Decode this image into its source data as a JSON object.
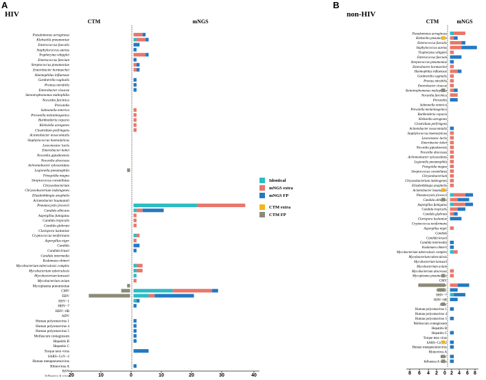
{
  "colors": {
    "identical": "#2bbcc4",
    "mngs_extra": "#e8776a",
    "mngs_fp": "#2379c1",
    "ctm_extra": "#f6b31b",
    "ctm_fp": "#8d8a78"
  },
  "legend": {
    "identical": "Identical",
    "mngs_extra": "mNGS extra",
    "mngs_fp": "mNGS FP",
    "ctm_extra": "CTM extra",
    "ctm_fp": "CTM FP"
  },
  "chart_data": [
    {
      "panel": "A",
      "title": "HIV",
      "type": "bar",
      "orientation": "horizontal-diverging",
      "left_header": "CTM",
      "right_header": "mNGS",
      "x_ticks": [
        "20",
        "10",
        "0",
        "10",
        "20",
        "30",
        "40"
      ],
      "left_range": [
        0,
        20
      ],
      "right_range": [
        0,
        40
      ],
      "series": {
        "mngs": [
          "identical",
          "mngs_extra",
          "mngs_fp"
        ],
        "ctm": [
          "ctm_extra",
          "ctm_fp"
        ]
      },
      "categories": [
        "Pseudomonas aeruginosa",
        "Klebsiella pneumoniae",
        "Enterococcus faecalis",
        "Staphylococcus aureus",
        "Tropheryma whipplei",
        "Enterococcus faecium",
        "Streptococcus pneumoniae",
        "Enterobacter hormaechei",
        "Haemophilus influenzae",
        "Gardnerella vaginalis",
        "Proteus mirabilis",
        "Enterobacter cloacae",
        "Stenotrophomonas maltophilia",
        "Nocardia farcinica",
        "Prevotella",
        "Salmonella enterica",
        "Prevotella melaninogenica",
        "Burkholderia cepacia",
        "Klebsiella aerogenes",
        "Clostridium perfringens",
        "Acinetobacter nosocomialis",
        "Staphylococcus haemolyticus",
        "Leuconostoc lactis",
        "Enterobacter kobei",
        "Nocardia gipuzkoensis",
        "Nocardia abscessus",
        "Achromobacter xylosoxidans",
        "Legionella pneumophila",
        "Finegoldia magna",
        "Streptococcus constellatus",
        "Chryseobacterium",
        "Chryseobacterium indologenes",
        "Elizabethkingia anophelis",
        "Acinetobacter baumannii",
        "Pneumocystis jirovecii",
        "Candida albicans",
        "Aspergillus fumigatus",
        "Candida tropicalis",
        "Candida glabrata",
        "Clavispora lusitaniae",
        "Cryptococcus neoformans",
        "Aspergillus niger",
        "Candida",
        "Candida krusei",
        "Candida intermedia",
        "Kodamaea ohmeri",
        "Mycobacterium tuberculosis complex",
        "Mycobacterium tuberculosis",
        "Mycobacterium kansasii",
        "Mycobacterium avium",
        "Mycoplasma pneumoniae",
        "CMV",
        "EBV",
        "HSV−1",
        "HHV−7",
        "HHV−6B",
        "ADV",
        "Human polyomavirus 1",
        "Human polyomavirus 4",
        "Human polyomavirus 5",
        "Molluscum contagiosum",
        "Hepatitis B",
        "Hepatitis C",
        "Torque teno virus",
        "SARS−CoV−2",
        "Human metapneumovirus",
        "Rhinovirus A",
        "RSV",
        "Influenza A virus"
      ],
      "italic_until": 50,
      "bars": [
        [
          0,
          3,
          1,
          0,
          0
        ],
        [
          1,
          3,
          1,
          0,
          0
        ],
        [
          0,
          0,
          2,
          0,
          0
        ],
        [
          0,
          0,
          1,
          0,
          0
        ],
        [
          0,
          4,
          1,
          0,
          0
        ],
        [
          0,
          0,
          1,
          0,
          0
        ],
        [
          0,
          1,
          1,
          0,
          0
        ],
        [
          0,
          1,
          1,
          0,
          0
        ],
        [
          0,
          0,
          0,
          0,
          0
        ],
        [
          0,
          0,
          1,
          0,
          0
        ],
        [
          0,
          0,
          1,
          0,
          0
        ],
        [
          0,
          0,
          1,
          0,
          0
        ],
        [
          0,
          0,
          0,
          0,
          0
        ],
        [
          0,
          0,
          0,
          0,
          0
        ],
        [
          0,
          0,
          0,
          0,
          0
        ],
        [
          0,
          1,
          0,
          0,
          0
        ],
        [
          0,
          1,
          0,
          0,
          0
        ],
        [
          0,
          1,
          0,
          0,
          0
        ],
        [
          0,
          1,
          0,
          0,
          0
        ],
        [
          0,
          1,
          0,
          0,
          0
        ],
        [
          0,
          0,
          0,
          0,
          0
        ],
        [
          0,
          0,
          0,
          0,
          0
        ],
        [
          0,
          0,
          0,
          0,
          0
        ],
        [
          0,
          0,
          0,
          0,
          0
        ],
        [
          0,
          0,
          0,
          0,
          0
        ],
        [
          0,
          0,
          0,
          0,
          0
        ],
        [
          0,
          0,
          0,
          0,
          0
        ],
        [
          0,
          0,
          0,
          0,
          1
        ],
        [
          0,
          0,
          0,
          0,
          0
        ],
        [
          0,
          0,
          0,
          0,
          0
        ],
        [
          0,
          0,
          0,
          0,
          0
        ],
        [
          0,
          0,
          0,
          0,
          0
        ],
        [
          0,
          0,
          0,
          0,
          0
        ],
        [
          0,
          0,
          0,
          0,
          0
        ],
        [
          21,
          16,
          0,
          0,
          0
        ],
        [
          1,
          2,
          7,
          0,
          0
        ],
        [
          0,
          1,
          0,
          0,
          0
        ],
        [
          0,
          1,
          0,
          0,
          0
        ],
        [
          0,
          1,
          0,
          0,
          0
        ],
        [
          0,
          0,
          0,
          0,
          0
        ],
        [
          1,
          1,
          0,
          0,
          0
        ],
        [
          0,
          1,
          0,
          0,
          0
        ],
        [
          0,
          0,
          2,
          0,
          0
        ],
        [
          0,
          0,
          1,
          0,
          0
        ],
        [
          0,
          0,
          0,
          0,
          0
        ],
        [
          0,
          0,
          0,
          0,
          0
        ],
        [
          1,
          2,
          0,
          0,
          0
        ],
        [
          1,
          2,
          0,
          0,
          0
        ],
        [
          1,
          0,
          0,
          0,
          0
        ],
        [
          0,
          1,
          0,
          0,
          0
        ],
        [
          0,
          0,
          0,
          0,
          1
        ],
        [
          13,
          13,
          2,
          0,
          3
        ],
        [
          5,
          2,
          13,
          0,
          14
        ],
        [
          1,
          0,
          1,
          0,
          0
        ],
        [
          0,
          0,
          1,
          0,
          0
        ],
        [
          0,
          0,
          0,
          0,
          0
        ],
        [
          0,
          0,
          0,
          0,
          0
        ],
        [
          0,
          0,
          1,
          0,
          0
        ],
        [
          0,
          0,
          1,
          0,
          0
        ],
        [
          0,
          0,
          1,
          0,
          0
        ],
        [
          0,
          0,
          1,
          0,
          0
        ],
        [
          0,
          0,
          1,
          0,
          0
        ],
        [
          0,
          0,
          0,
          0,
          0
        ],
        [
          0,
          0,
          5,
          0,
          0
        ],
        [
          0,
          0,
          0,
          0,
          0
        ],
        [
          0,
          0,
          0,
          0,
          0
        ],
        [
          0,
          0,
          1,
          0,
          0
        ],
        [
          0,
          0,
          0,
          0,
          0
        ],
        [
          0,
          0,
          0,
          0,
          0
        ]
      ]
    },
    {
      "panel": "B",
      "title": "non-HIV",
      "type": "bar",
      "orientation": "horizontal-diverging",
      "left_header": "CTM",
      "right_header": "mNGS",
      "x_ticks": [
        "8",
        "6",
        "4",
        "2",
        "0",
        "2",
        "4",
        "6",
        "8"
      ],
      "left_range": [
        0,
        8
      ],
      "right_range": [
        0,
        8
      ],
      "series": {
        "mngs": [
          "identical",
          "mngs_extra",
          "mngs_fp"
        ],
        "ctm": [
          "ctm_extra",
          "ctm_fp"
        ]
      },
      "categories": [
        "Pseudomonas aeruginosa",
        "Klebsiella pneumoniae",
        "Enterococcus faecalis",
        "Staphylococcus aureus",
        "Tropheryma whipplei",
        "Enterococcus faecium",
        "Streptococcus pneumoniae",
        "Enterobacter hormaechei",
        "Haemophilus influenzae",
        "Gardnerella vaginalis",
        "Proteus mirabilis",
        "Enterobacter cloacae",
        "Stenotrophomonas maltophilia",
        "Nocardia farcinica",
        "Prevotella",
        "Salmonella enterica",
        "Prevotella melaninogenica",
        "Burkholderia cepacia",
        "Klebsiella aerogenes",
        "Clostridium perfringens",
        "Acinetobacter nosocomialis",
        "Staphylococcus haemolyticus",
        "Leuconostoc lactis",
        "Enterobacter kobei",
        "Nocardia gipuzkoensis",
        "Nocardia abscessus",
        "Achromobacter xylosoxidans",
        "Legionella pneumophila",
        "Finegoldia magna",
        "Streptococcus constellatus",
        "Chryseobacterium",
        "Chryseobacterium indologenes",
        "Elizabethkingia anophelis",
        "Acinetobacter baumannii",
        "Pneumocystis jirovecii",
        "Candida albicans",
        "Aspergillus fumigatus",
        "Candida tropicalis",
        "Candida glabrata",
        "Clavispora lusitaniae",
        "Cryptococcus neoformans",
        "Aspergillus niger",
        "Candida",
        "Candida krusei",
        "Candida intermedia",
        "Kodamaea ohmeri",
        "Mycobacterium tuberculosis complex",
        "Mycobacterium tuberculosis",
        "Mycobacterium kansasii",
        "Mycobacterium avium",
        "Mycobacterium abscessus",
        "Mycoplasma pneumoniae",
        "CMV",
        "EBV",
        "HSV−1",
        "HHV−7",
        "HHV−6B",
        "ADV",
        "Human polyomavirus 1",
        "Human polyomavirus 4",
        "Human polyomavirus 5",
        "Molluscum contagiosum",
        "Hepatitis B",
        "Hepatitis C",
        "Torque teno virus",
        "SARS−CoV−2",
        "Human metapneumovirus",
        "Rhinovirus A",
        "RSV",
        "Influenza A virus"
      ],
      "italic_until": 52,
      "bars": [
        [
          1,
          3,
          0,
          0,
          0
        ],
        [
          0,
          1,
          1,
          1,
          0
        ],
        [
          0,
          3,
          1,
          0,
          0
        ],
        [
          0,
          3,
          4,
          0,
          0
        ],
        [
          0,
          1,
          0,
          0,
          0
        ],
        [
          0,
          0,
          3,
          0,
          0
        ],
        [
          0,
          0,
          1,
          0,
          0
        ],
        [
          0,
          1,
          0,
          0,
          0
        ],
        [
          0,
          2,
          1,
          0,
          0
        ],
        [
          0,
          1,
          0,
          0,
          0
        ],
        [
          0,
          1,
          0,
          0,
          0
        ],
        [
          0,
          1,
          0,
          0,
          0
        ],
        [
          0,
          1,
          1,
          0,
          1
        ],
        [
          0,
          2,
          0,
          0,
          0
        ],
        [
          0,
          0,
          2,
          0,
          0
        ],
        [
          0,
          0,
          0,
          0,
          0
        ],
        [
          0,
          0,
          0,
          0,
          0
        ],
        [
          0,
          0,
          0,
          0,
          0
        ],
        [
          0,
          0,
          0,
          0,
          0
        ],
        [
          0,
          0,
          0,
          0,
          0
        ],
        [
          0,
          0,
          1,
          0,
          0
        ],
        [
          0,
          1,
          0,
          0,
          0
        ],
        [
          0,
          1,
          0,
          0,
          0
        ],
        [
          0,
          1,
          0,
          0,
          0
        ],
        [
          0,
          1,
          0,
          0,
          0
        ],
        [
          0,
          1,
          0,
          0,
          0
        ],
        [
          0,
          1,
          0,
          0,
          0
        ],
        [
          0,
          1,
          0,
          0,
          0
        ],
        [
          0,
          1,
          0,
          0,
          0
        ],
        [
          0,
          1,
          0,
          0,
          0
        ],
        [
          0,
          1,
          0,
          0,
          0
        ],
        [
          0,
          1,
          0,
          0,
          0
        ],
        [
          0,
          1,
          0,
          0,
          0
        ],
        [
          0,
          0,
          0,
          1,
          0
        ],
        [
          1,
          3,
          2,
          0,
          0
        ],
        [
          0,
          2,
          3,
          0,
          1
        ],
        [
          1,
          3,
          2,
          0,
          0
        ],
        [
          0,
          2,
          2,
          0,
          0
        ],
        [
          0,
          1,
          1,
          0,
          0
        ],
        [
          0,
          0,
          3,
          0,
          0
        ],
        [
          0,
          0,
          0,
          0,
          0
        ],
        [
          0,
          1,
          0,
          0,
          0
        ],
        [
          0,
          0,
          0,
          0,
          0
        ],
        [
          0,
          0,
          0,
          0,
          0
        ],
        [
          0,
          0,
          1,
          0,
          0
        ],
        [
          0,
          0,
          1,
          0,
          0
        ],
        [
          1,
          1,
          0,
          0,
          0
        ],
        [
          0,
          0,
          0,
          0,
          0
        ],
        [
          0,
          0,
          0,
          0,
          0
        ],
        [
          0,
          0,
          0,
          0,
          0
        ],
        [
          0,
          1,
          0,
          0,
          0
        ],
        [
          0,
          1,
          0,
          0,
          1
        ],
        [
          0,
          0,
          0,
          0,
          0
        ],
        [
          0,
          2,
          3,
          0,
          7
        ],
        [
          0,
          0,
          2,
          0,
          2
        ],
        [
          1,
          0,
          3,
          0,
          0
        ],
        [
          0,
          0,
          2,
          0,
          0
        ],
        [
          0,
          0,
          0,
          0,
          1
        ],
        [
          0,
          0,
          1,
          0,
          0
        ],
        [
          0,
          0,
          0,
          0,
          0
        ],
        [
          0,
          0,
          1,
          0,
          0
        ],
        [
          0,
          0,
          0,
          0,
          0
        ],
        [
          0,
          0,
          0,
          0,
          0
        ],
        [
          0,
          0,
          1,
          0,
          0
        ],
        [
          0,
          0,
          0,
          0,
          0
        ],
        [
          0,
          0,
          1,
          1,
          0
        ],
        [
          0,
          0,
          1,
          0,
          0
        ],
        [
          0,
          0,
          0,
          0,
          0
        ],
        [
          0,
          0,
          1,
          0,
          1
        ],
        [
          0,
          0,
          1,
          0,
          1
        ]
      ]
    }
  ]
}
